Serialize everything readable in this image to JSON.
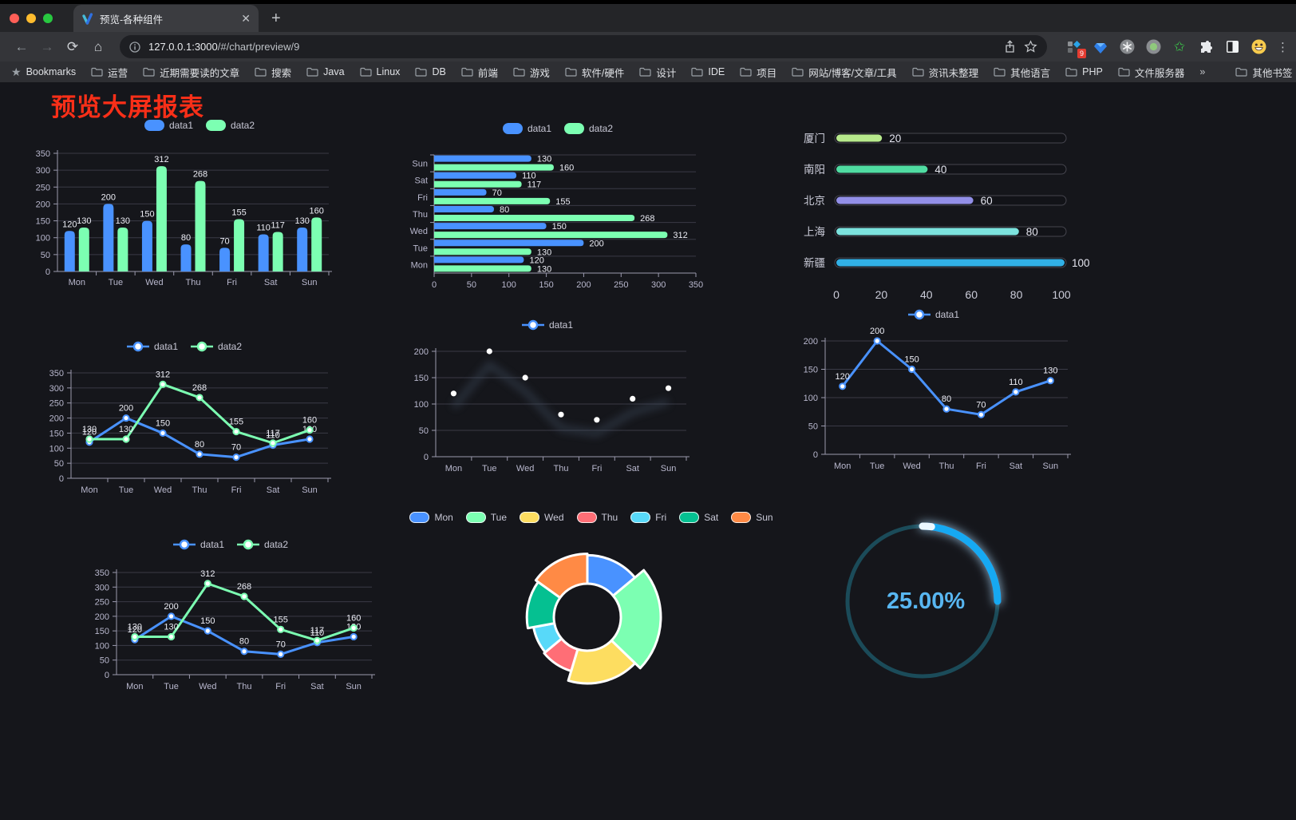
{
  "browser": {
    "tab": {
      "title": "预览-各种组件",
      "close_glyph": "✕",
      "new_tab_glyph": "+"
    },
    "traffic_lights": {
      "close": "#ff5f57",
      "minimize": "#febc2e",
      "zoom": "#28c840"
    },
    "toolbar": {
      "back": "←",
      "forward": "→",
      "reload": "⟳",
      "home": "⌂"
    },
    "url": {
      "host": "127.0.0.1:3000",
      "path": "/#/chart/preview/9"
    },
    "extension_badge": "9",
    "bookmarks": {
      "label": "Bookmarks",
      "items": [
        "运营",
        "近期需要读的文章",
        "搜索",
        "Java",
        "Linux",
        "DB",
        "前端",
        "游戏",
        "软件/硬件",
        "设计",
        "IDE",
        "项目",
        "网站/博客/文章/工具",
        "资讯未整理",
        "其他语言",
        "PHP",
        "文件服务器"
      ],
      "overflow_glyph": "»",
      "other_label": "其他书签"
    }
  },
  "page": {
    "title": "预览大屏报表",
    "title_color": "#f92f18",
    "background": "#15161b"
  },
  "chart_data": [
    {
      "id": "bar-vertical",
      "type": "bar",
      "categories": [
        "Mon",
        "Tue",
        "Wed",
        "Thu",
        "Fri",
        "Sat",
        "Sun"
      ],
      "series": [
        {
          "name": "data1",
          "color": "#4992ff",
          "values": [
            120,
            200,
            150,
            80,
            70,
            110,
            130
          ]
        },
        {
          "name": "data2",
          "color": "#7cffb2",
          "values": [
            130,
            130,
            312,
            268,
            155,
            117,
            160
          ]
        }
      ],
      "ylim": [
        0,
        350
      ],
      "ytick_step": 50,
      "grid": true,
      "legend_position": "top",
      "value_labels": true
    },
    {
      "id": "bar-horizontal",
      "type": "bar-horizontal",
      "categories_top_to_bottom": [
        "Sun",
        "Sat",
        "Fri",
        "Thu",
        "Wed",
        "Tue",
        "Mon"
      ],
      "series": [
        {
          "name": "data1",
          "color": "#4992ff",
          "values_top_to_bottom": [
            130,
            110,
            70,
            80,
            150,
            200,
            120
          ]
        },
        {
          "name": "data2",
          "color": "#7cffb2",
          "values_top_to_bottom": [
            160,
            117,
            155,
            268,
            312,
            130,
            130
          ]
        }
      ],
      "xlim": [
        0,
        350
      ],
      "xtick_step": 50,
      "legend_position": "top",
      "value_labels": true
    },
    {
      "id": "capsule",
      "type": "capsule-bar",
      "rows": [
        {
          "label": "厦门",
          "value": 20,
          "color": "#b7e98c"
        },
        {
          "label": "南阳",
          "value": 40,
          "color": "#50dca2"
        },
        {
          "label": "北京",
          "value": 60,
          "color": "#928fe8"
        },
        {
          "label": "上海",
          "value": 80,
          "color": "#7ce3de"
        },
        {
          "label": "新疆",
          "value": 100,
          "color": "#31b0e6"
        }
      ],
      "xlim": [
        0,
        100
      ],
      "xticks": [
        0,
        20,
        40,
        60,
        80,
        100
      ]
    },
    {
      "id": "line-dual",
      "type": "line",
      "categories": [
        "Mon",
        "Tue",
        "Wed",
        "Thu",
        "Fri",
        "Sat",
        "Sun"
      ],
      "series": [
        {
          "name": "data1",
          "color": "#4992ff",
          "values": [
            120,
            200,
            150,
            80,
            70,
            110,
            130
          ]
        },
        {
          "name": "data2",
          "color": "#7cffb2",
          "values": [
            130,
            130,
            312,
            268,
            155,
            117,
            160
          ]
        }
      ],
      "ylim": [
        0,
        350
      ],
      "ytick_step": 50,
      "value_labels": true
    },
    {
      "id": "line-gradient",
      "type": "line",
      "categories": [
        "Mon",
        "Tue",
        "Wed",
        "Thu",
        "Fri",
        "Sat",
        "Sun"
      ],
      "series": [
        {
          "name": "data1",
          "color": "#4992ff",
          "gradient": [
            "#4992ff",
            "#4fd0c0",
            "#7cffb2"
          ],
          "values": [
            120,
            200,
            150,
            80,
            70,
            110,
            130
          ]
        }
      ],
      "ylim": [
        0,
        200
      ],
      "ytick_step": 50,
      "value_labels": false,
      "shadow": true
    },
    {
      "id": "line-area",
      "type": "area",
      "categories": [
        "Mon",
        "Tue",
        "Wed",
        "Thu",
        "Fri",
        "Sat",
        "Sun"
      ],
      "series": [
        {
          "name": "data1",
          "color": "#4992ff",
          "values": [
            120,
            200,
            150,
            80,
            70,
            110,
            130
          ]
        }
      ],
      "ylim": [
        0,
        200
      ],
      "ytick_step": 50,
      "value_labels": true
    },
    {
      "id": "line-area-dual",
      "type": "area",
      "categories": [
        "Mon",
        "Tue",
        "Wed",
        "Thu",
        "Fri",
        "Sat",
        "Sun"
      ],
      "series": [
        {
          "name": "data1",
          "color": "#4992ff",
          "values": [
            120,
            200,
            150,
            80,
            70,
            110,
            130
          ]
        },
        {
          "name": "data2",
          "color": "#7cffb2",
          "values": [
            130,
            130,
            312,
            268,
            155,
            117,
            160
          ]
        }
      ],
      "ylim": [
        0,
        350
      ],
      "ytick_step": 50,
      "value_labels": true
    },
    {
      "id": "pie-rose",
      "type": "pie",
      "donut": true,
      "rose": true,
      "slices": [
        {
          "label": "Mon",
          "value": 120,
          "color": "#4992ff"
        },
        {
          "label": "Tue",
          "value": 200,
          "color": "#7cffb2"
        },
        {
          "label": "Wed",
          "value": 150,
          "color": "#fddd60"
        },
        {
          "label": "Thu",
          "value": 80,
          "color": "#ff6e76"
        },
        {
          "label": "Fri",
          "value": 70,
          "color": "#58d9f9"
        },
        {
          "label": "Sat",
          "value": 110,
          "color": "#05c091"
        },
        {
          "label": "Sun",
          "value": 130,
          "color": "#ff8a45"
        }
      ]
    },
    {
      "id": "gauge-ring",
      "type": "gauge",
      "value": 25,
      "max": 100,
      "display": "25.00%",
      "progress_color": "#14a9f2",
      "track_color": "#1b4b59",
      "text_color": "#58b6f1"
    }
  ]
}
